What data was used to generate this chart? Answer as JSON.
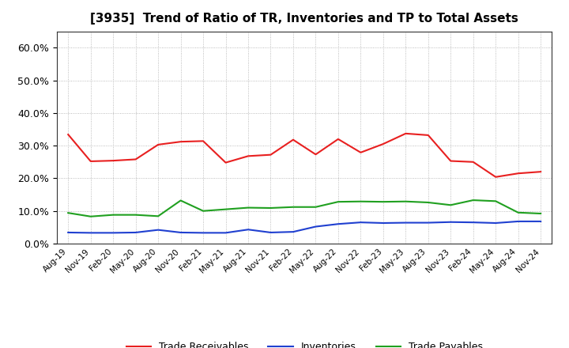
{
  "title": "[3935]  Trend of Ratio of TR, Inventories and TP to Total Assets",
  "x_labels": [
    "Aug-19",
    "Nov-19",
    "Feb-20",
    "May-20",
    "Aug-20",
    "Nov-20",
    "Feb-21",
    "May-21",
    "Aug-21",
    "Nov-21",
    "Feb-22",
    "May-22",
    "Aug-22",
    "Nov-22",
    "Feb-23",
    "May-23",
    "Aug-23",
    "Nov-23",
    "Feb-24",
    "May-24",
    "Aug-24",
    "Nov-24"
  ],
  "trade_receivables": [
    0.334,
    0.252,
    0.254,
    0.258,
    0.303,
    0.312,
    0.314,
    0.248,
    0.268,
    0.272,
    0.318,
    0.273,
    0.32,
    0.279,
    0.305,
    0.337,
    0.332,
    0.253,
    0.25,
    0.204,
    0.215,
    0.22
  ],
  "inventories": [
    0.034,
    0.033,
    0.033,
    0.034,
    0.042,
    0.034,
    0.033,
    0.033,
    0.043,
    0.034,
    0.036,
    0.052,
    0.06,
    0.065,
    0.063,
    0.064,
    0.064,
    0.066,
    0.065,
    0.063,
    0.068,
    0.068
  ],
  "trade_payables": [
    0.094,
    0.083,
    0.088,
    0.088,
    0.084,
    0.132,
    0.1,
    0.105,
    0.11,
    0.109,
    0.112,
    0.112,
    0.128,
    0.129,
    0.128,
    0.129,
    0.126,
    0.118,
    0.133,
    0.13,
    0.095,
    0.092
  ],
  "ylim": [
    0.0,
    0.65
  ],
  "yticks": [
    0.0,
    0.1,
    0.2,
    0.3,
    0.4,
    0.5,
    0.6
  ],
  "color_tr": "#e82020",
  "color_inv": "#2040d0",
  "color_tp": "#20a020",
  "line_width": 1.5,
  "background_color": "#ffffff",
  "plot_bg_color": "#ffffff",
  "grid_color": "#aaaaaa",
  "legend_labels": [
    "Trade Receivables",
    "Inventories",
    "Trade Payables"
  ]
}
